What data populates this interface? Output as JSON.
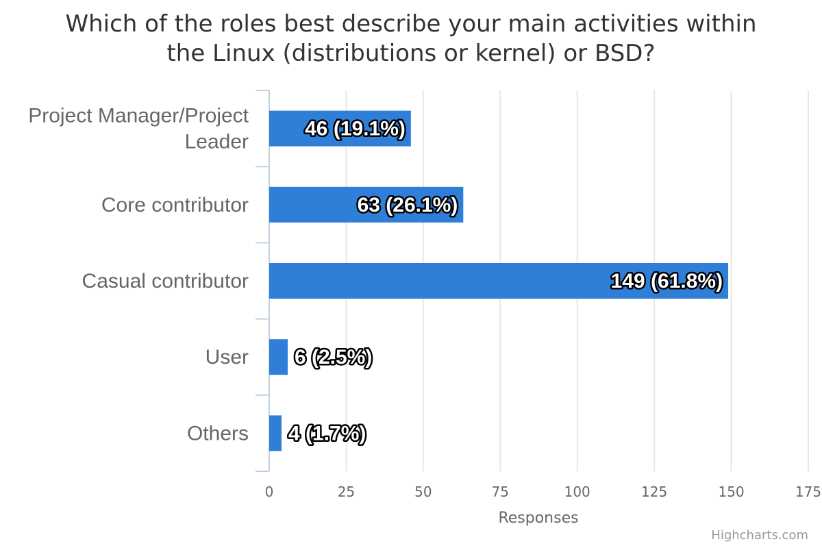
{
  "chart": {
    "title_lines": [
      "Which of the roles best describe your main activities within",
      "the Linux (distributions or kernel) or BSD?"
    ],
    "credits": "Highcharts.com"
  },
  "chart_data": {
    "type": "bar",
    "orientation": "horizontal",
    "title": "Which of the roles best describe your main activities within the Linux (distributions or kernel) or BSD?",
    "xlabel": "Responses",
    "categories": [
      [
        "Project Manager/Project",
        "Leader"
      ],
      [
        "Core contributor"
      ],
      [
        "Casual contributor"
      ],
      [
        "User"
      ],
      [
        "Others"
      ]
    ],
    "values": [
      46,
      63,
      149,
      6,
      4
    ],
    "labels": [
      "46 (19.1%)",
      "63 (26.1%)",
      "149 (61.8%)",
      "6 (2.5%)",
      "4 (1.7%)"
    ],
    "xlim": [
      0,
      175
    ],
    "ticks": [
      "0",
      "25",
      "50",
      "75",
      "100",
      "125",
      "150",
      "175"
    ],
    "tick_values": [
      0,
      25,
      50,
      75,
      100,
      125,
      150,
      175
    ],
    "grid": true,
    "bar_color": "#2f7ed8"
  }
}
